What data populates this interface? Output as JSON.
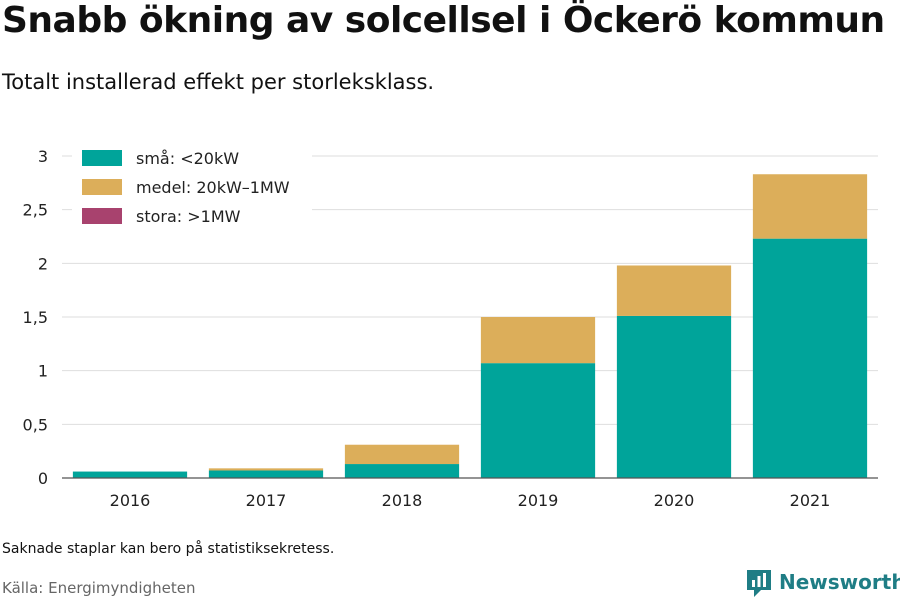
{
  "header": {
    "title": "Snabb ökning av solcellsel i Öckerö kommun",
    "subtitle": "Totalt installerad effekt per storleksklass."
  },
  "footer": {
    "note": "Saknade staplar kan bero på statistiksekretess.",
    "source": "Källa: Energimyndigheten",
    "brand": "Newsworthy"
  },
  "chart_data": {
    "type": "bar",
    "stacked": true,
    "categories": [
      "2016",
      "2017",
      "2018",
      "2019",
      "2020",
      "2021"
    ],
    "series": [
      {
        "name": "små: <20kW",
        "color": "#00a49a",
        "values": [
          0.06,
          0.07,
          0.13,
          1.07,
          1.51,
          2.23
        ]
      },
      {
        "name": "medel: 20kW–1MW",
        "color": "#dcae5a",
        "values": [
          0.0,
          0.02,
          0.18,
          0.43,
          0.47,
          0.6
        ]
      },
      {
        "name": "stora: >1MW",
        "color": "#a8426e",
        "values": [
          0,
          0,
          0,
          0,
          0,
          0
        ]
      }
    ],
    "yticks": [
      "0",
      "0,5",
      "1",
      "1,5",
      "2",
      "2,5",
      "3"
    ],
    "ylim": [
      0,
      3
    ],
    "grid": true,
    "legend": "top-left"
  }
}
